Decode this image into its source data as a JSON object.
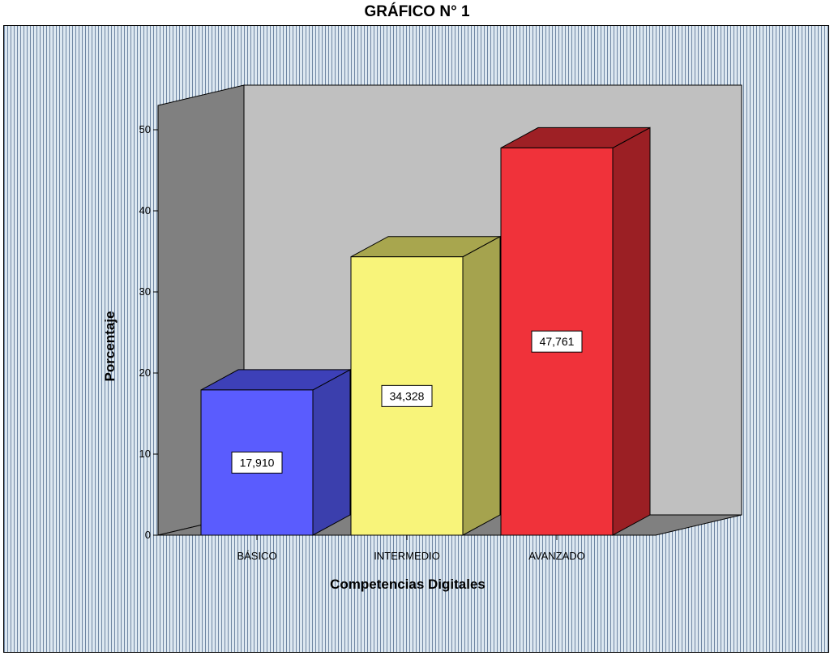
{
  "chart_data": {
    "type": "bar",
    "title": "GRÁFICO N° 1",
    "xlabel": "Competencias Digitales",
    "ylabel": "Porcentaje",
    "categories": [
      "BÁSICO",
      "INTERMEDIO",
      "AVANZADO"
    ],
    "values": [
      17.91,
      34.328,
      47.761
    ],
    "data_labels": [
      "17,910",
      "34,328",
      "47,761"
    ],
    "yticks": [
      "0",
      "10",
      "20",
      "30",
      "40",
      "50"
    ],
    "ylim": [
      0,
      50
    ],
    "three_d": true,
    "colors": {
      "bars": [
        {
          "front": "#5a5cfe",
          "side": "#3b3fad",
          "top": "#3d40b8"
        },
        {
          "front": "#f8f47a",
          "side": "#a5a34e",
          "top": "#a8a64e"
        },
        {
          "front": "#f0323a",
          "side": "#9b1f24",
          "top": "#9e2025"
        }
      ],
      "back_wall": "#c0c0c0",
      "side_wall": "#808080",
      "floor": "#808080",
      "background_lines": "#6f86a3"
    }
  }
}
